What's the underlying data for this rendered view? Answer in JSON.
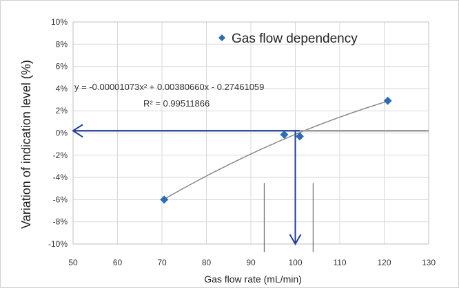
{
  "chart_data": {
    "type": "scatter",
    "xlabel": "Gas flow rate (mL/min)",
    "ylabel": "Variation of indication level  (%)",
    "xlim": [
      50,
      130
    ],
    "ylim": [
      -10,
      10
    ],
    "x_ticks": [
      "50",
      "60",
      "70",
      "80",
      "90",
      "100",
      "110",
      "120",
      "130"
    ],
    "y_ticks": [
      "10%",
      "8%",
      "6%",
      "4%",
      "2%",
      "0%",
      "-2%",
      "-4%",
      "-6%",
      "-8%",
      "-10%"
    ],
    "grid": true,
    "legend_position": "top-right",
    "series": [
      {
        "name": "Gas flow dependency",
        "marker": "diamond",
        "color": "#2e6db4",
        "x": [
          70.5,
          97.5,
          101,
          120.8
        ],
        "y": [
          -6.0,
          -0.15,
          -0.3,
          2.9
        ]
      }
    ],
    "trendline": {
      "type": "polynomial",
      "coefficients": [
        -1.073e-05,
        0.0038066,
        -0.27461059
      ],
      "color": "#888888",
      "x_range": [
        70,
        121
      ],
      "equation_text": "y = -0.00001073x² + 0.00380660x - 0.27461059",
      "r2_text": "R² = 0.99511866"
    },
    "annotations": {
      "color": "#1f3f9e",
      "horizontal_arrow": {
        "from_x": 101,
        "to_x": 50,
        "y": 0.2
      },
      "vertical_arrow": {
        "x": 100,
        "from_y": 0.2,
        "to_y": -10
      },
      "reference_lines_x": [
        93,
        104
      ],
      "highlight_y": 0.2
    }
  }
}
